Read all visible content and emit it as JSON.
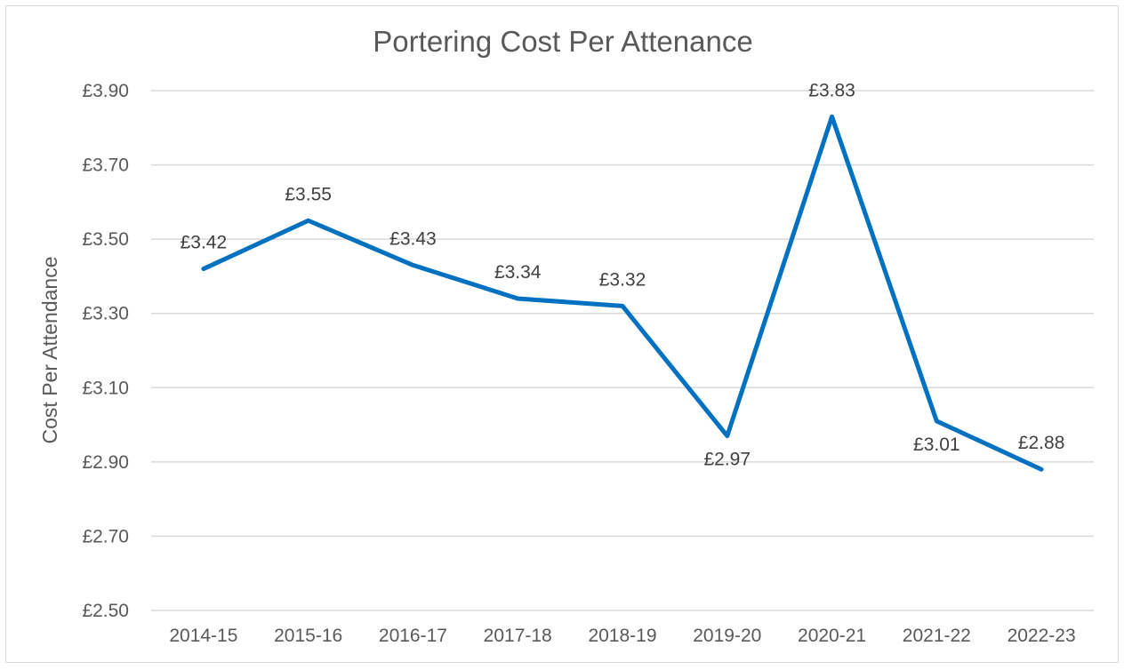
{
  "chart_data": {
    "type": "line",
    "title": "Portering Cost Per Attenance",
    "xlabel": "",
    "ylabel": "Cost Per Attendance",
    "categories": [
      "2014-15",
      "2015-16",
      "2016-17",
      "2017-18",
      "2018-19",
      "2019-20",
      "2020-21",
      "2021-22",
      "2022-23"
    ],
    "series": [
      {
        "values": [
          3.42,
          3.55,
          3.43,
          3.34,
          3.32,
          2.97,
          3.83,
          3.01,
          2.88
        ],
        "labels": [
          "£3.42",
          "£3.55",
          "£3.43",
          "£3.34",
          "£3.32",
          "£2.97",
          "£3.83",
          "£3.01",
          "£2.88"
        ],
        "label_positions": [
          "above",
          "above",
          "above",
          "above",
          "above",
          "below",
          "above",
          "below",
          "above"
        ]
      }
    ],
    "ylim": [
      2.5,
      3.9
    ],
    "yticks": [
      2.5,
      2.7,
      2.9,
      3.1,
      3.3,
      3.5,
      3.7,
      3.9
    ],
    "ytick_labels": [
      "£2.50",
      "£2.70",
      "£2.90",
      "£3.10",
      "£3.30",
      "£3.50",
      "£3.70",
      "£3.90"
    ],
    "grid": true,
    "legend": "none",
    "colors": {
      "line": "#0070c0",
      "grid": "#d9d9d9",
      "text": "#595959"
    }
  }
}
